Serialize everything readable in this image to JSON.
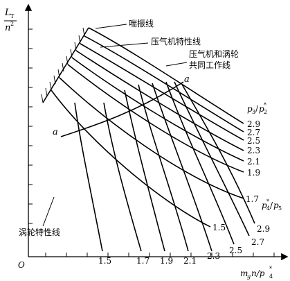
{
  "axes": {
    "origin": "O",
    "y_label_top": "L",
    "y_label_top_sub": "T",
    "y_label_bottom": "n",
    "y_label_bottom_sup": "2",
    "x_label_main": "m",
    "x_label_sub": "g",
    "x_label_rest": "n/p",
    "x_label_sup": "*",
    "x_label_sub2": "4"
  },
  "annotations": {
    "surge_line": "喘振线",
    "compressor_characteristics": "压气机特性线",
    "joint_line_1": "压气机和涡轮",
    "joint_line_2": "共同工作线",
    "turbine_characteristics": "涡轮特性线",
    "point_a_left": "a",
    "point_a_right": "a"
  },
  "compressor_ratio_label": {
    "p": "p",
    "sub3": "3",
    "slash": "/",
    "p2": "p",
    "sup": "*",
    "sub2": "2"
  },
  "compressor_ratios": [
    "2.9",
    "2.7",
    "2.5",
    "2.3",
    "2.1",
    "1.9",
    "1.7",
    "1.5"
  ],
  "turbine_ratio_label": {
    "p": "p",
    "sup": "*",
    "sub4": "4",
    "slash": "/",
    "p5": "p",
    "sub5": "5"
  },
  "turbine_ratios_right": [
    "2.9",
    "2.7"
  ],
  "turbine_ratios_bottom": [
    "1.5",
    "1.7",
    "1.9",
    "2.1",
    "2.3",
    "2.5"
  ]
}
